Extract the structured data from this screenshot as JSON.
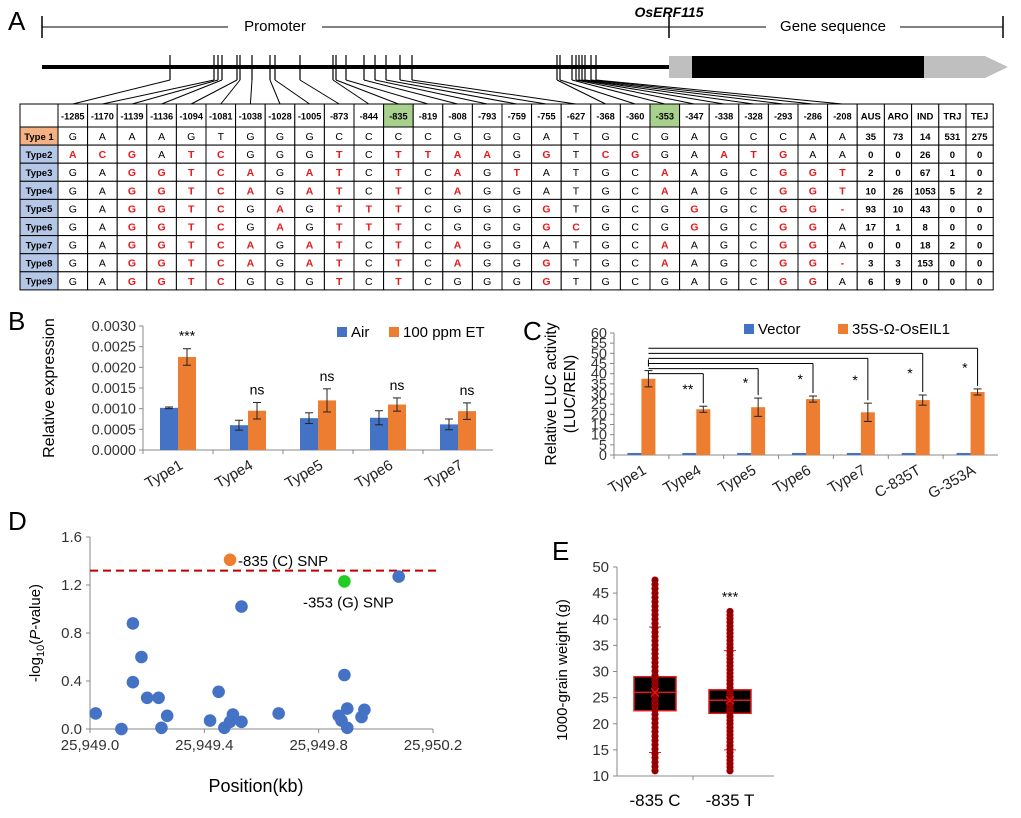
{
  "panelA": {
    "letter": "A",
    "promoter_label": "Promoter",
    "gene_name": "OsERF115",
    "gene_sequence_label": "Gene sequence",
    "positions": [
      "-1285",
      "-1170",
      "-1139",
      "-1136",
      "-1094",
      "-1081",
      "-1038",
      "-1028",
      "-1005",
      "-873",
      "-844",
      "-835",
      "-819",
      "-808",
      "-793",
      "-759",
      "-755",
      "-627",
      "-368",
      "-360",
      "-353",
      "-347",
      "-338",
      "-328",
      "-293",
      "-286",
      "-208"
    ],
    "highlighted_positions": [
      "-835",
      "-353"
    ],
    "population_headers": [
      "AUS",
      "ARO",
      "IND",
      "TRJ",
      "TEJ"
    ],
    "types": [
      {
        "name": "Type 1",
        "bases": [
          "G",
          "A",
          "A",
          "A",
          "G",
          "T",
          "G",
          "G",
          "G",
          "C",
          "C",
          "C",
          "C",
          "G",
          "G",
          "G",
          "A",
          "T",
          "G",
          "C",
          "G",
          "A",
          "G",
          "C",
          "C",
          "A",
          "A"
        ],
        "counts": [
          "35",
          "73",
          "14",
          "531",
          "275"
        ]
      },
      {
        "name": "Type2",
        "bases": [
          "A",
          "C",
          "G",
          "A",
          "T",
          "C",
          "G",
          "G",
          "G",
          "T",
          "C",
          "T",
          "T",
          "A",
          "A",
          "G",
          "G",
          "T",
          "C",
          "G",
          "G",
          "A",
          "A",
          "T",
          "G",
          "A",
          "A"
        ],
        "counts": [
          "0",
          "0",
          "26",
          "0",
          "0"
        ]
      },
      {
        "name": "Type3",
        "bases": [
          "G",
          "A",
          "G",
          "G",
          "T",
          "C",
          "A",
          "G",
          "A",
          "T",
          "C",
          "T",
          "C",
          "A",
          "G",
          "T",
          "A",
          "T",
          "G",
          "C",
          "A",
          "A",
          "G",
          "C",
          "G",
          "G",
          "T"
        ],
        "counts": [
          "2",
          "0",
          "67",
          "1",
          "0"
        ]
      },
      {
        "name": "Type4",
        "bases": [
          "G",
          "A",
          "G",
          "G",
          "T",
          "C",
          "A",
          "G",
          "A",
          "T",
          "C",
          "T",
          "C",
          "A",
          "G",
          "G",
          "A",
          "T",
          "G",
          "C",
          "A",
          "A",
          "G",
          "C",
          "G",
          "G",
          "T"
        ],
        "counts": [
          "10",
          "26",
          "1053",
          "5",
          "2"
        ]
      },
      {
        "name": "Type5",
        "bases": [
          "G",
          "A",
          "G",
          "G",
          "T",
          "C",
          "G",
          "A",
          "G",
          "T",
          "T",
          "T",
          "C",
          "G",
          "G",
          "G",
          "G",
          "T",
          "G",
          "C",
          "G",
          "G",
          "G",
          "C",
          "G",
          "G",
          "-"
        ],
        "counts": [
          "93",
          "10",
          "43",
          "0",
          "0"
        ]
      },
      {
        "name": "Type6",
        "bases": [
          "G",
          "A",
          "G",
          "G",
          "T",
          "C",
          "G",
          "A",
          "G",
          "T",
          "T",
          "T",
          "C",
          "G",
          "G",
          "G",
          "G",
          "C",
          "G",
          "C",
          "G",
          "G",
          "G",
          "C",
          "G",
          "G",
          "A"
        ],
        "counts": [
          "17",
          "1",
          "8",
          "0",
          "0"
        ]
      },
      {
        "name": "Type7",
        "bases": [
          "G",
          "A",
          "G",
          "G",
          "T",
          "C",
          "A",
          "G",
          "A",
          "T",
          "C",
          "T",
          "C",
          "A",
          "G",
          "G",
          "A",
          "T",
          "G",
          "C",
          "A",
          "A",
          "G",
          "C",
          "G",
          "G",
          "A"
        ],
        "counts": [
          "0",
          "0",
          "18",
          "2",
          "0"
        ]
      },
      {
        "name": "Type8",
        "bases": [
          "G",
          "A",
          "G",
          "G",
          "T",
          "C",
          "A",
          "G",
          "A",
          "T",
          "C",
          "T",
          "C",
          "A",
          "G",
          "G",
          "G",
          "T",
          "G",
          "C",
          "A",
          "A",
          "G",
          "C",
          "G",
          "G",
          "-"
        ],
        "counts": [
          "3",
          "3",
          "153",
          "0",
          "0"
        ]
      },
      {
        "name": "Type9",
        "bases": [
          "G",
          "A",
          "G",
          "G",
          "T",
          "C",
          "G",
          "G",
          "G",
          "T",
          "C",
          "T",
          "C",
          "G",
          "G",
          "G",
          "G",
          "T",
          "G",
          "C",
          "G",
          "A",
          "G",
          "C",
          "G",
          "G",
          "A"
        ],
        "counts": [
          "6",
          "9",
          "0",
          "0",
          "0"
        ]
      }
    ],
    "colors": {
      "type1_bg": "#F4B183",
      "type_bg": "#B4C7E7",
      "highlight_bg": "#A9D18E",
      "variant_text": "#E31A1C",
      "utr": "#BFBFBF"
    }
  },
  "chart_data": [
    {
      "panel": "B",
      "type": "bar",
      "ylabel": "Relative expression",
      "categories": [
        "Type1",
        "Type4",
        "Type5",
        "Type6",
        "Type7"
      ],
      "series": [
        {
          "name": "Air",
          "color": "#4472C4",
          "values": [
            0.00102,
            0.0006,
            0.00077,
            0.00078,
            0.00062
          ],
          "errors": [
            2e-05,
            0.00012,
            0.00013,
            0.00017,
            0.00013
          ]
        },
        {
          "name": "100 ppm ET",
          "color": "#ED7D31",
          "values": [
            0.00225,
            0.00095,
            0.0012,
            0.0011,
            0.00094
          ],
          "errors": [
            0.0002,
            0.0002,
            0.00028,
            0.00016,
            0.0002
          ]
        }
      ],
      "ylim": [
        0,
        0.003
      ],
      "yticks": [
        "0.0000",
        "0.0005",
        "0.0010",
        "0.0015",
        "0.0020",
        "0.0025",
        "0.0030"
      ],
      "annotations": [
        "***",
        "ns",
        "ns",
        "ns",
        "ns"
      ],
      "legend": "top-right"
    },
    {
      "panel": "C",
      "type": "bar",
      "ylabel": "Relative LUC activity (LUC/REN)",
      "ylabel_lines": [
        "Relative LUC activity",
        "(LUC/REN)"
      ],
      "categories": [
        "Type1",
        "Type4",
        "Type5",
        "Type6",
        "Type7",
        "C-835T",
        "G-353A"
      ],
      "series": [
        {
          "name": "Vector",
          "color": "#4472C4",
          "values": [
            1,
            1,
            1,
            1,
            1,
            1,
            1
          ],
          "errors": [
            0,
            0,
            0,
            0,
            0,
            0,
            0
          ]
        },
        {
          "name": "35S-Ω-OsEIL1",
          "color": "#ED7D31",
          "values": [
            37.5,
            22.5,
            23.5,
            27.5,
            21,
            27,
            31
          ],
          "errors": [
            4,
            1.5,
            4.5,
            1.5,
            4.5,
            2.5,
            1.5
          ]
        }
      ],
      "ylim": [
        0,
        60
      ],
      "yticks": [
        "0",
        "5",
        "10",
        "15",
        "20",
        "25",
        "30",
        "35",
        "40",
        "45",
        "50",
        "55",
        "60"
      ],
      "comparisons": [
        "**",
        "*",
        "*",
        "*",
        "*",
        "*"
      ],
      "legend": "top"
    },
    {
      "panel": "D",
      "type": "scatter",
      "xlabel": "Position(kb)",
      "ylabel": "-log10(P-value)",
      "ylabel_parts": {
        "pre": "-log",
        "sub": "10",
        "mid": "(",
        "italic": "P",
        "post": "-value)"
      },
      "xlim": [
        25949.0,
        25950.2
      ],
      "xticks": [
        "25,949.0",
        "25,949.4",
        "25,949.8",
        "25,950.2"
      ],
      "ylim": [
        0,
        1.6
      ],
      "yticks": [
        "0.0",
        "0.4",
        "0.8",
        "1.2",
        "1.6"
      ],
      "threshold": 1.32,
      "points": [
        {
          "x": 25949.02,
          "y": 0.13
        },
        {
          "x": 25949.11,
          "y": 0.0
        },
        {
          "x": 25949.15,
          "y": 0.88
        },
        {
          "x": 25949.15,
          "y": 0.39
        },
        {
          "x": 25949.18,
          "y": 0.6
        },
        {
          "x": 25949.2,
          "y": 0.26
        },
        {
          "x": 25949.24,
          "y": 0.26
        },
        {
          "x": 25949.25,
          "y": 0.01
        },
        {
          "x": 25949.27,
          "y": 0.11
        },
        {
          "x": 25949.42,
          "y": 0.07
        },
        {
          "x": 25949.45,
          "y": 0.31
        },
        {
          "x": 25949.47,
          "y": 0.01
        },
        {
          "x": 25949.49,
          "y": 0.06
        },
        {
          "x": 25949.5,
          "y": 0.12
        },
        {
          "x": 25949.53,
          "y": 0.06
        },
        {
          "x": 25949.53,
          "y": 1.02
        },
        {
          "x": 25949.66,
          "y": 0.13
        },
        {
          "x": 25949.87,
          "y": 0.11
        },
        {
          "x": 25949.88,
          "y": 0.07
        },
        {
          "x": 25949.89,
          "y": 0.45
        },
        {
          "x": 25949.9,
          "y": 0.17
        },
        {
          "x": 25949.9,
          "y": 0.01
        },
        {
          "x": 25949.95,
          "y": 0.1
        },
        {
          "x": 25949.96,
          "y": 0.16
        },
        {
          "x": 25950.08,
          "y": 1.27
        }
      ],
      "highlighted": [
        {
          "x": 25949.49,
          "y": 1.41,
          "color": "#ED7D31",
          "label": "-835 (C) SNP"
        },
        {
          "x": 25949.89,
          "y": 1.23,
          "color": "#22CC22",
          "label": "-353 (G) SNP"
        }
      ]
    },
    {
      "panel": "E",
      "type": "box",
      "ylabel": "1000-grain weight (g)",
      "categories": [
        "-835 C",
        "-835 T"
      ],
      "ylim": [
        10,
        50
      ],
      "yticks": [
        "10",
        "15",
        "20",
        "25",
        "30",
        "35",
        "40",
        "45",
        "50"
      ],
      "boxes": [
        {
          "q1": 22.5,
          "median": 26,
          "q3": 29,
          "whisker_low": 14.5,
          "whisker_high": 38.5,
          "min": 11,
          "max": 47.5
        },
        {
          "q1": 22,
          "median": 24.5,
          "q3": 26.5,
          "whisker_low": 15,
          "whisker_high": 34,
          "min": 11,
          "max": 41.5
        }
      ],
      "annotation": "***"
    }
  ]
}
